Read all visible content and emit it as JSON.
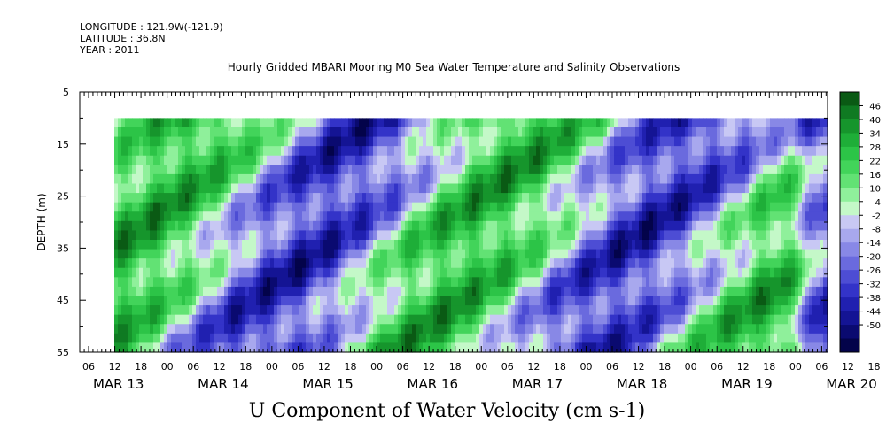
{
  "header": {
    "longitude": "LONGITUDE : 121.9W(-121.9)",
    "latitude": "LATITUDE : 36.8N",
    "year": "YEAR : 2011"
  },
  "chart_data": {
    "type": "heatmap",
    "title": "Hourly Gridded MBARI Mooring M0 Sea Water Temperature and Salinity Observations",
    "xlabel": "",
    "ylabel": "DEPTH (m)",
    "caption": "U Component of Water Velocity (cm s-1)",
    "ylim": [
      5,
      55
    ],
    "y_ticks": [
      5,
      15,
      25,
      35,
      45,
      55
    ],
    "y_tick_labels": [
      "5",
      "15",
      "25",
      "35",
      "45",
      "55"
    ],
    "data_depth_range": [
      10,
      55
    ],
    "hour_ticks": [
      "06",
      "12",
      "18",
      "00",
      "06",
      "12",
      "18",
      "00",
      "06",
      "12",
      "18",
      "00",
      "06",
      "12",
      "18",
      "00",
      "06",
      "12",
      "18",
      "00",
      "06",
      "12",
      "18",
      "00",
      "06",
      "12",
      "18",
      "00",
      "06",
      "12",
      "18",
      "00"
    ],
    "day_labels": [
      "MAR 13",
      "MAR 14",
      "MAR 15",
      "MAR 16",
      "MAR 17",
      "MAR 18",
      "MAR 19",
      "MAR 20"
    ],
    "colorbar": {
      "levels": [
        "46",
        "40",
        "34",
        "28",
        "22",
        "16",
        "10",
        "4",
        "-2",
        "-8",
        "-14",
        "-20",
        "-26",
        "-32",
        "-38",
        "-44",
        "-50"
      ],
      "positive_colors": [
        "#0a5a14",
        "#0f7a22",
        "#16952c",
        "#1eae38",
        "#2cc447",
        "#42d45a",
        "#62e274",
        "#8ff09b",
        "#c4f8c8"
      ],
      "negative_colors": [
        "#c8c8f4",
        "#a8a8ee",
        "#8888e6",
        "#6a6ade",
        "#4d4dd4",
        "#3333c8",
        "#2020b0",
        "#141494",
        "#0a0a70",
        "#03034a"
      ]
    }
  }
}
